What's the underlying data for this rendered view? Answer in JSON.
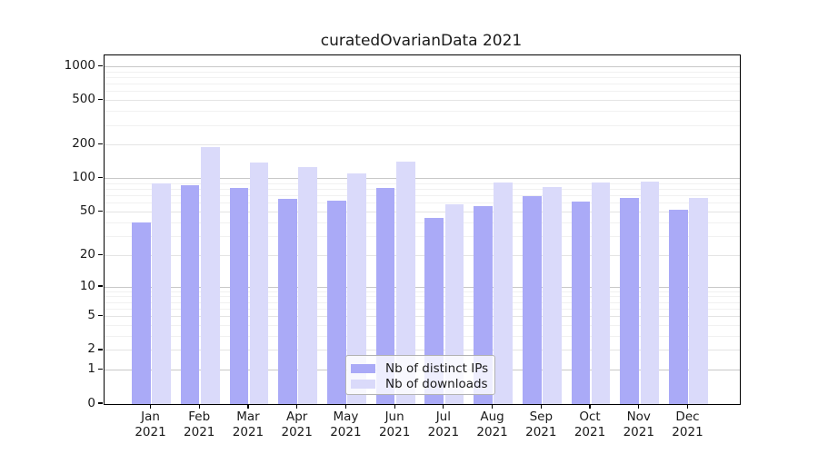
{
  "title": "curatedOvarianData 2021",
  "chart_data": {
    "type": "bar",
    "title": "curatedOvarianData 2021",
    "categories": [
      "Jan",
      "Feb",
      "Mar",
      "Apr",
      "May",
      "Jun",
      "Jul",
      "Aug",
      "Sep",
      "Oct",
      "Nov",
      "Dec"
    ],
    "year_label": "2021",
    "series": [
      {
        "name": "Nb of distinct IPs",
        "color": "#aaaaf7",
        "values": [
          40,
          87,
          82,
          66,
          64,
          82,
          44,
          57,
          70,
          62,
          67,
          53
        ]
      },
      {
        "name": "Nb of downloads",
        "color": "#dadafa",
        "values": [
          90,
          193,
          140,
          127,
          111,
          143,
          59,
          93,
          84,
          93,
          94,
          67
        ]
      }
    ],
    "y_ticks": [
      0,
      1,
      2,
      5,
      10,
      20,
      50,
      100,
      200,
      500,
      1000
    ],
    "y_minor_gridlines": [
      3,
      4,
      6,
      7,
      8,
      9,
      30,
      40,
      60,
      70,
      80,
      90,
      300,
      400,
      600,
      700,
      800,
      900
    ],
    "y_decade_ticks": [
      1,
      10,
      100,
      1000
    ],
    "scale": "log1p",
    "ylim": [
      0,
      1263
    ],
    "grid": true,
    "legend_position": "lower-center-inside",
    "grid_color_decade": "#c8c8c8",
    "grid_color_labeled": "#e4e4e4",
    "grid_color_minor": "#f1f1f1"
  }
}
